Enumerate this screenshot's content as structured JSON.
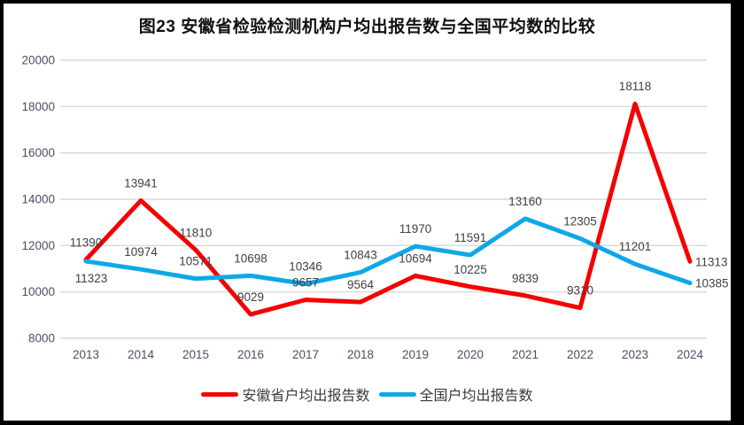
{
  "chart_data": {
    "type": "line",
    "title": "图23 安徽省检验检测机构户均出报告数与全国平均数的比较",
    "categories": [
      "2013",
      "2014",
      "2015",
      "2016",
      "2017",
      "2018",
      "2019",
      "2020",
      "2021",
      "2022",
      "2023",
      "2024"
    ],
    "series": [
      {
        "name": "安徽省户均出报告数",
        "color": "#F40000",
        "values": [
          11390,
          13941,
          11810,
          9029,
          9657,
          9564,
          10694,
          10225,
          9839,
          9310,
          18118,
          11313
        ]
      },
      {
        "name": "全国户均出报告数",
        "color": "#0FA8E6",
        "values": [
          11323,
          10974,
          10571,
          10698,
          10346,
          10843,
          11970,
          11591,
          13160,
          12305,
          11201,
          10385
        ]
      }
    ],
    "ylim": [
      8000,
      20000
    ],
    "yticks": [
      8000,
      10000,
      12000,
      14000,
      16000,
      18000,
      20000
    ],
    "grid": "horizontal",
    "gridline_color": "#D9D9D9",
    "tick_color": "#475063",
    "data_label_color": "#404040",
    "show_data_labels": true,
    "legend_position": "bottom",
    "label_placement_overrides": [
      {
        "series": 1,
        "index": 0,
        "position": "below"
      },
      {
        "series": 0,
        "index": 11,
        "position": "right"
      },
      {
        "series": 1,
        "index": 11,
        "position": "right"
      }
    ]
  }
}
